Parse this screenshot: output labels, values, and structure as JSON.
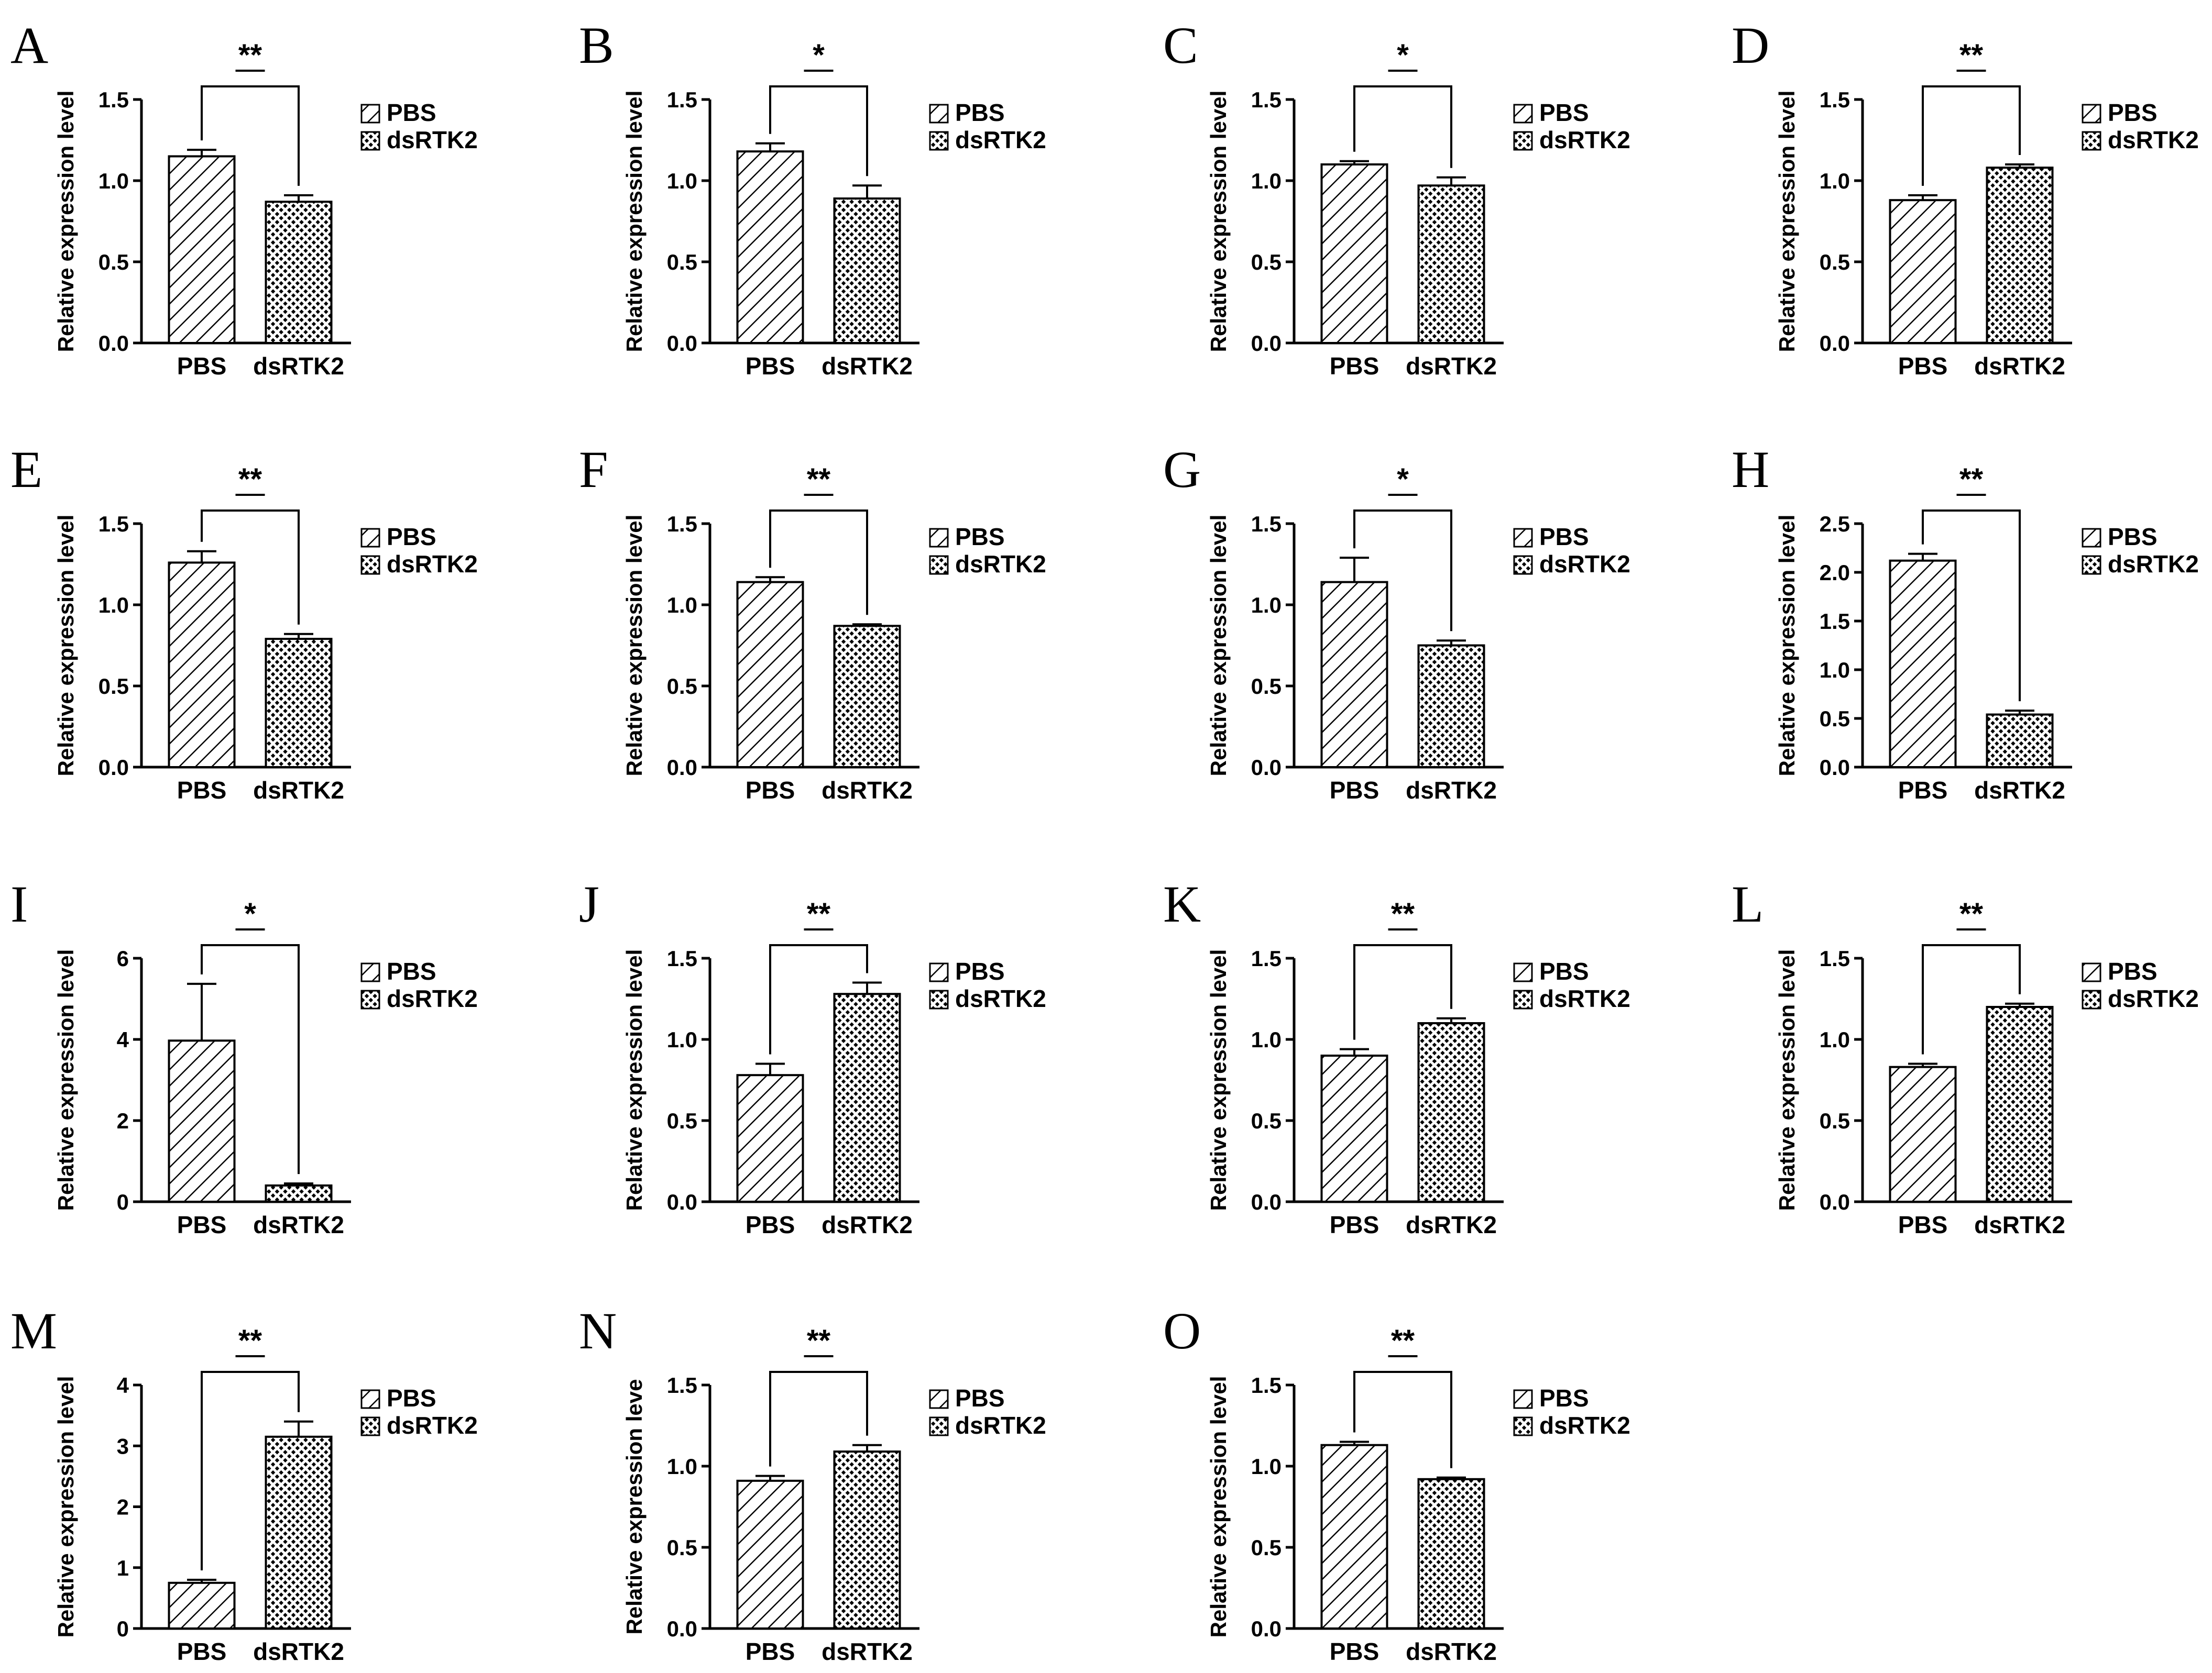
{
  "legend": {
    "pbs_label": "PBS",
    "dsrtk2_label": "dsRTK2"
  },
  "colors": {
    "axis": "#000000",
    "hatch": "#000000",
    "background": "#ffffff"
  },
  "chart_data": [
    {
      "type": "bar",
      "panel": "A",
      "categories": [
        "PBS",
        "dsRTK2"
      ],
      "values": [
        1.15,
        0.87
      ],
      "errors": [
        0.04,
        0.04
      ],
      "ylabel": "Relative expression level",
      "ylim": [
        0,
        1.5
      ],
      "yticks": [
        "0.0",
        "0.5",
        "1.0",
        "1.5"
      ],
      "significance": "**",
      "legend": [
        "PBS",
        "dsRTK2"
      ]
    },
    {
      "type": "bar",
      "panel": "B",
      "categories": [
        "PBS",
        "dsRTK2"
      ],
      "values": [
        1.18,
        0.89
      ],
      "errors": [
        0.05,
        0.08
      ],
      "ylabel": "Relative expression level",
      "ylim": [
        0,
        1.5
      ],
      "yticks": [
        "0.0",
        "0.5",
        "1.0",
        "1.5"
      ],
      "significance": "*",
      "legend": [
        "PBS",
        "dsRTK2"
      ]
    },
    {
      "type": "bar",
      "panel": "C",
      "categories": [
        "PBS",
        "dsRTK2"
      ],
      "values": [
        1.1,
        0.97
      ],
      "errors": [
        0.02,
        0.05
      ],
      "ylabel": "Relative expression level",
      "ylim": [
        0,
        1.5
      ],
      "yticks": [
        "0.0",
        "0.5",
        "1.0",
        "1.5"
      ],
      "significance": "*",
      "legend": [
        "PBS",
        "dsRTK2"
      ]
    },
    {
      "type": "bar",
      "panel": "D",
      "categories": [
        "PBS",
        "dsRTK2"
      ],
      "values": [
        0.88,
        1.08
      ],
      "errors": [
        0.03,
        0.02
      ],
      "ylabel": "Relative expression level",
      "ylim": [
        0,
        1.5
      ],
      "yticks": [
        "0.0",
        "0.5",
        "1.0",
        "1.5"
      ],
      "significance": "**",
      "legend": [
        "PBS",
        "dsRTK2"
      ]
    },
    {
      "type": "bar",
      "panel": "E",
      "categories": [
        "PBS",
        "dsRTK2"
      ],
      "values": [
        1.26,
        0.79
      ],
      "errors": [
        0.07,
        0.03
      ],
      "ylabel": "Relative expression level",
      "ylim": [
        0,
        1.5
      ],
      "yticks": [
        "0.0",
        "0.5",
        "1.0",
        "1.5"
      ],
      "significance": "**",
      "legend": [
        "PBS",
        "dsRTK2"
      ]
    },
    {
      "type": "bar",
      "panel": "F",
      "categories": [
        "PBS",
        "dsRTK2"
      ],
      "values": [
        1.14,
        0.87
      ],
      "errors": [
        0.03,
        0.01
      ],
      "ylabel": "Relative expression level",
      "ylim": [
        0,
        1.5
      ],
      "yticks": [
        "0.0",
        "0.5",
        "1.0",
        "1.5"
      ],
      "significance": "**",
      "legend": [
        "PBS",
        "dsRTK2"
      ]
    },
    {
      "type": "bar",
      "panel": "G",
      "categories": [
        "PBS",
        "dsRTK2"
      ],
      "values": [
        1.14,
        0.75
      ],
      "errors": [
        0.15,
        0.03
      ],
      "ylabel": "Relative expression level",
      "ylim": [
        0,
        1.5
      ],
      "yticks": [
        "0.0",
        "0.5",
        "1.0",
        "1.5"
      ],
      "significance": "*",
      "legend": [
        "PBS",
        "dsRTK2"
      ]
    },
    {
      "type": "bar",
      "panel": "H",
      "categories": [
        "PBS",
        "dsRTK2"
      ],
      "values": [
        2.12,
        0.54
      ],
      "errors": [
        0.07,
        0.04
      ],
      "ylabel": "Relative expression level",
      "ylim": [
        0,
        2.5
      ],
      "yticks": [
        "0.0",
        "0.5",
        "1.0",
        "1.5",
        "2.0",
        "2.5"
      ],
      "significance": "**",
      "legend": [
        "PBS",
        "dsRTK2"
      ]
    },
    {
      "type": "bar",
      "panel": "I",
      "categories": [
        "PBS",
        "dsRTK2"
      ],
      "values": [
        3.97,
        0.4
      ],
      "errors": [
        1.4,
        0.05
      ],
      "ylabel": "Relative expression level",
      "ylim": [
        0,
        6
      ],
      "yticks": [
        "0",
        "2",
        "4",
        "6"
      ],
      "significance": "*",
      "legend": [
        "PBS",
        "dsRTK2"
      ]
    },
    {
      "type": "bar",
      "panel": "J",
      "categories": [
        "PBS",
        "dsRTK2"
      ],
      "values": [
        0.78,
        1.28
      ],
      "errors": [
        0.07,
        0.07
      ],
      "ylabel": "Relative expression level",
      "ylim": [
        0,
        1.5
      ],
      "yticks": [
        "0.0",
        "0.5",
        "1.0",
        "1.5"
      ],
      "significance": "**",
      "legend": [
        "PBS",
        "dsRTK2"
      ]
    },
    {
      "type": "bar",
      "panel": "K",
      "categories": [
        "PBS",
        "dsRTK2"
      ],
      "values": [
        0.9,
        1.1
      ],
      "errors": [
        0.04,
        0.03
      ],
      "ylabel": "Relative expression level",
      "ylim": [
        0,
        1.5
      ],
      "yticks": [
        "0.0",
        "0.5",
        "1.0",
        "1.5"
      ],
      "significance": "**",
      "legend": [
        "PBS",
        "dsRTK2"
      ]
    },
    {
      "type": "bar",
      "panel": "L",
      "categories": [
        "PBS",
        "dsRTK2"
      ],
      "values": [
        0.83,
        1.2
      ],
      "errors": [
        0.02,
        0.02
      ],
      "ylabel": "Relative expression level",
      "ylim": [
        0,
        1.5
      ],
      "yticks": [
        "0.0",
        "0.5",
        "1.0",
        "1.5"
      ],
      "significance": "**",
      "legend": [
        "PBS",
        "dsRTK2"
      ]
    },
    {
      "type": "bar",
      "panel": "M",
      "categories": [
        "PBS",
        "dsRTK2"
      ],
      "values": [
        0.75,
        3.15
      ],
      "errors": [
        0.05,
        0.25
      ],
      "ylabel": "Relative expression level",
      "ylim": [
        0,
        4
      ],
      "yticks": [
        "0",
        "1",
        "2",
        "3",
        "4"
      ],
      "significance": "**",
      "legend": [
        "PBS",
        "dsRTK2"
      ]
    },
    {
      "type": "bar",
      "panel": "N",
      "categories": [
        "PBS",
        "dsRTK2"
      ],
      "values": [
        0.91,
        1.09
      ],
      "errors": [
        0.03,
        0.04
      ],
      "ylabel": "Relative expression leve",
      "ylim": [
        0,
        1.5
      ],
      "yticks": [
        "0.0",
        "0.5",
        "1.0",
        "1.5"
      ],
      "significance": "**",
      "legend": [
        "PBS",
        "dsRTK2"
      ]
    },
    {
      "type": "bar",
      "panel": "O",
      "categories": [
        "PBS",
        "dsRTK2"
      ],
      "values": [
        1.13,
        0.92
      ],
      "errors": [
        0.02,
        0.01
      ],
      "ylabel": "Relative expression level",
      "ylim": [
        0,
        1.5
      ],
      "yticks": [
        "0.0",
        "0.5",
        "1.0",
        "1.5"
      ],
      "significance": "**",
      "legend": [
        "PBS",
        "dsRTK2"
      ]
    }
  ]
}
